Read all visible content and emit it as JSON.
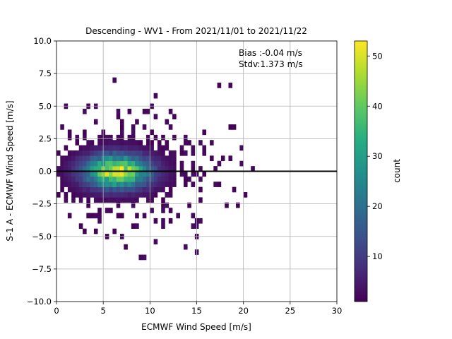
{
  "chart_data": {
    "type": "heatmap",
    "title": "Descending - WV1 - From 2021/11/01 to 2021/11/22",
    "xlabel": "ECMWF Wind Speed [m/s]",
    "ylabel": "S-1 A - ECMWF Wind Speed [m/s]",
    "xlim": [
      0,
      30
    ],
    "ylim": [
      -10,
      10
    ],
    "xticks": [
      0,
      5,
      10,
      15,
      20,
      25,
      30
    ],
    "yticks": [
      -10.0,
      -7.5,
      -5.0,
      -2.5,
      0.0,
      2.5,
      5.0,
      7.5,
      10.0
    ],
    "grid": true,
    "reference_line_y": 0,
    "annotations": [
      "Bias :-0.04 m/s",
      "Stdv:1.373 m/s"
    ],
    "colorbar": {
      "label": "count",
      "range": [
        1,
        53
      ],
      "ticks": [
        10,
        20,
        30,
        40,
        50
      ],
      "colormap": "viridis"
    },
    "density_peak": {
      "x": 6.5,
      "y": 0.0,
      "count": 53
    },
    "bin_size": [
      0.4,
      0.4
    ]
  },
  "colors": {
    "axis": "#000000",
    "grid": "#b0b0b0",
    "reference_line": "#000000"
  }
}
